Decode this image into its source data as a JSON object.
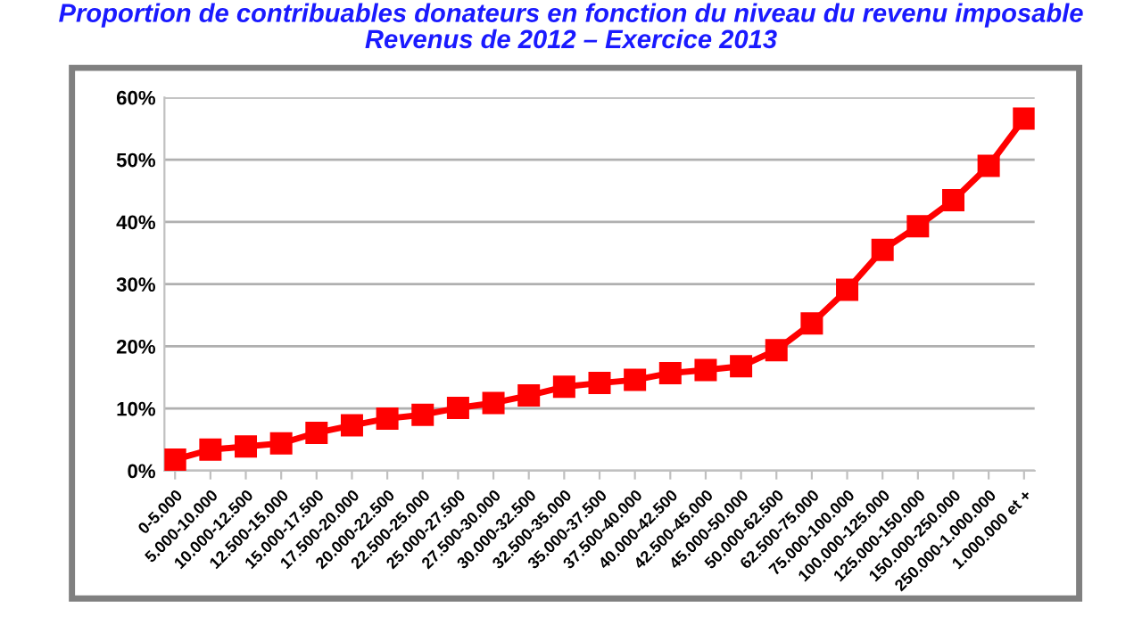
{
  "chart_data": {
    "type": "line",
    "title": "Proportion de contribuables donateurs en fonction du niveau du revenu imposable\nRevenus de 2012 – Exercice 2013",
    "categories": [
      "0-5.000",
      "5.000-10.000",
      "10.000-12.500",
      "12.500-15.000",
      "15.000-17.500",
      "17.500-20.000",
      "20.000-22.500",
      "22.500-25.000",
      "25.000-27.500",
      "27.500-30.000",
      "30.000-32.500",
      "32.500-35.000",
      "35.000-37.500",
      "37.500-40.000",
      "40.000-42.500",
      "42.500-45.000",
      "45.000-50.000",
      "50.000-62.500",
      "62.500-75.000",
      "75.000-100.000",
      "100.000-125.000",
      "125.000-150.000",
      "150.000-250.000",
      "250.000-1.000.000",
      "1.000.000 et +"
    ],
    "series": [
      {
        "color": "#ff0000",
        "values": [
          1.8,
          3.4,
          3.9,
          4.4,
          6.1,
          7.3,
          8.4,
          9.0,
          10.1,
          10.9,
          12.1,
          13.5,
          14.1,
          14.6,
          15.7,
          16.2,
          16.8,
          19.4,
          23.7,
          29.1,
          35.5,
          39.3,
          43.5,
          49.0,
          56.6
        ]
      }
    ],
    "ylim": [
      0,
      60
    ],
    "yticks": [
      {
        "value": 0,
        "label": "0%"
      },
      {
        "value": 10,
        "label": "10%"
      },
      {
        "value": 20,
        "label": "20%"
      },
      {
        "value": 30,
        "label": "30%"
      },
      {
        "value": 40,
        "label": "40%"
      },
      {
        "value": 50,
        "label": "50%"
      },
      {
        "value": 60,
        "label": "60%"
      }
    ],
    "grid": "y",
    "marker": "square",
    "line_style": "solid"
  }
}
